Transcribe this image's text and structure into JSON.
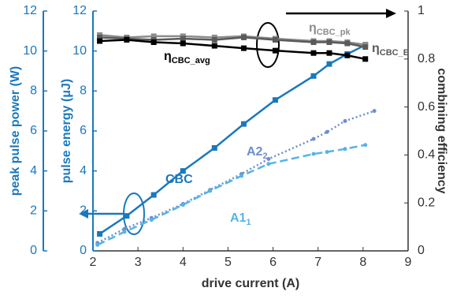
{
  "chart_data": {
    "type": "line",
    "x_label": "drive current (A)",
    "xlim": [
      2,
      9
    ],
    "xticks": [
      2,
      3,
      4,
      5,
      6,
      7,
      8,
      9
    ],
    "left_axes": [
      {
        "label": "peak pulse power (W)",
        "lim": [
          0,
          12
        ],
        "ticks": [
          0,
          2,
          4,
          6,
          8,
          10,
          12
        ],
        "color": "#1a78bd"
      },
      {
        "label": "pulse energy (μJ)",
        "lim": [
          0,
          12
        ],
        "ticks": [
          0,
          2,
          4,
          6,
          8,
          10,
          12
        ],
        "color": "#1a78bd"
      }
    ],
    "y2_label": "combining efficiency",
    "y2lim": [
      0,
      1
    ],
    "y2ticks": [
      0,
      0.2,
      0.4,
      0.6,
      0.8,
      1
    ],
    "series": [
      {
        "name": "CBC",
        "color": "#1a78bd",
        "style": "solid",
        "marker": "square",
        "x": [
          2.15,
          2.75,
          3.35,
          4.0,
          4.7,
          5.35,
          6.05,
          6.9,
          7.25,
          7.65,
          8.05
        ],
        "values": [
          0.85,
          1.75,
          2.8,
          4.0,
          5.15,
          6.35,
          7.55,
          8.75,
          9.35,
          9.85,
          10.3
        ]
      },
      {
        "name": "A2",
        "sub": "2",
        "color": "#6b8fd0",
        "style": "dotted",
        "marker": "circle",
        "x": [
          2.1,
          2.7,
          3.3,
          4.0,
          4.6,
          5.3,
          5.9,
          6.9,
          7.2,
          7.6,
          8.25
        ],
        "values": [
          0.4,
          1.1,
          1.65,
          2.35,
          3.05,
          3.85,
          4.6,
          5.6,
          5.95,
          6.5,
          7.0
        ]
      },
      {
        "name": "A1",
        "sub": "1",
        "color": "#55b4e6",
        "style": "dashed",
        "marker": "circle",
        "x": [
          2.1,
          2.7,
          3.3,
          4.0,
          4.6,
          5.3,
          5.9,
          6.9,
          7.2,
          7.6,
          8.05
        ],
        "values": [
          0.3,
          0.95,
          1.55,
          2.3,
          3.0,
          3.75,
          4.35,
          4.85,
          4.95,
          5.1,
          5.3
        ]
      },
      {
        "name": "η",
        "sub": "CBC_pk",
        "color": "#8c8c8c",
        "style": "solid",
        "marker": "square",
        "axis": "y2",
        "x": [
          2.15,
          2.75,
          3.35,
          4.0,
          4.7,
          5.35,
          6.05,
          6.9,
          7.25,
          7.65,
          8.05
        ],
        "values": [
          0.9,
          0.89,
          0.895,
          0.895,
          0.89,
          0.895,
          0.885,
          0.875,
          0.875,
          0.87,
          0.86
        ]
      },
      {
        "name": "η",
        "sub": "CBC_E",
        "color": "#5a5a5a",
        "style": "solid",
        "marker": "square",
        "axis": "y2",
        "x": [
          2.15,
          2.75,
          3.35,
          4.0,
          4.7,
          5.35,
          6.05,
          6.9,
          7.25,
          7.65,
          8.05
        ],
        "values": [
          0.89,
          0.885,
          0.88,
          0.885,
          0.88,
          0.89,
          0.88,
          0.87,
          0.87,
          0.865,
          0.85
        ]
      },
      {
        "name": "η",
        "sub": "CBC_avg",
        "color": "#000000",
        "style": "solid",
        "marker": "square",
        "axis": "y2",
        "x": [
          2.15,
          2.75,
          3.35,
          4.0,
          4.7,
          5.35,
          6.05,
          6.9,
          7.25,
          7.65,
          8.05
        ],
        "values": [
          0.875,
          0.88,
          0.87,
          0.865,
          0.855,
          0.845,
          0.835,
          0.825,
          0.825,
          0.815,
          0.8
        ]
      }
    ]
  }
}
